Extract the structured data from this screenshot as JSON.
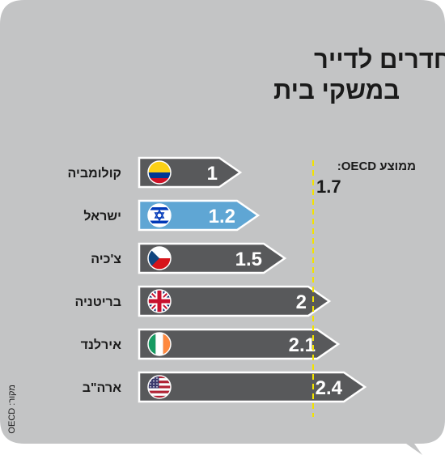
{
  "chart_data": {
    "type": "bar",
    "orientation": "horizontal",
    "title_line1": "מספר חדרים לדייר",
    "title_line2": "במשקי בית",
    "categories": [
      "קולומביה",
      "ישראל",
      "צ'כיה",
      "בריטניה",
      "אירלנד",
      "ארה\"ב"
    ],
    "values": [
      1,
      1.2,
      1.5,
      2,
      2.1,
      2.4
    ],
    "value_labels": [
      "1",
      "1.2",
      "1.5",
      "2",
      "2.1",
      "2.4"
    ],
    "flags": [
      "colombia-flag",
      "israel-flag",
      "czech-flag",
      "uk-flag",
      "ireland-flag",
      "usa-flag"
    ],
    "highlight_index": 1,
    "average": {
      "label": "ממוצע OECD:",
      "value": 1.7,
      "value_label": "1.7"
    },
    "source": "מקור: OECD",
    "colors": {
      "background": "#c3c4c5",
      "bar": "#58595b",
      "bar_highlight": "#5fa6d4",
      "bar_outline": "#ffffff",
      "average_line": "#f2e300",
      "text": "#1a1a1a"
    }
  }
}
